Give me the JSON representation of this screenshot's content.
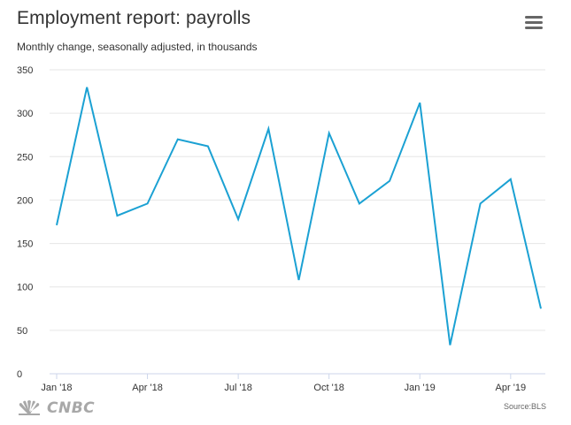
{
  "header": {
    "title": "Employment report: payrolls",
    "subtitle": "Monthly change, seasonally adjusted, in thousands",
    "menu_icon": "hamburger-menu-icon"
  },
  "footer": {
    "logo_text": "CNBC",
    "logo_icon": "nbc-peacock-icon",
    "source": "Source:BLS"
  },
  "colors": {
    "line": "#1ba1d3",
    "grid": "#e6e6e6",
    "axis": "#ccd6eb",
    "text": "#333333"
  },
  "chart_data": {
    "type": "line",
    "title": "Employment report: payrolls",
    "subtitle": "Monthly change, seasonally adjusted, in thousands",
    "xlabel": "",
    "ylabel": "",
    "ylim": [
      0,
      350
    ],
    "grid": true,
    "legend": "none",
    "yticks": [
      0,
      50,
      100,
      150,
      200,
      250,
      300,
      350
    ],
    "xticks": [
      {
        "label": "Jan '18",
        "index": 0
      },
      {
        "label": "Apr '18",
        "index": 3
      },
      {
        "label": "Jul '18",
        "index": 6
      },
      {
        "label": "Oct '18",
        "index": 9
      },
      {
        "label": "Jan '19",
        "index": 12
      },
      {
        "label": "Apr '19",
        "index": 15
      }
    ],
    "x": [
      "2018-01",
      "2018-02",
      "2018-03",
      "2018-04",
      "2018-05",
      "2018-06",
      "2018-07",
      "2018-08",
      "2018-09",
      "2018-10",
      "2018-11",
      "2018-12",
      "2019-01",
      "2019-02",
      "2019-03",
      "2019-04",
      "2019-05"
    ],
    "series": [
      {
        "values": [
          171,
          330,
          182,
          196,
          270,
          262,
          178,
          282,
          108,
          277,
          196,
          222,
          312,
          33,
          196,
          224,
          75
        ]
      }
    ]
  }
}
